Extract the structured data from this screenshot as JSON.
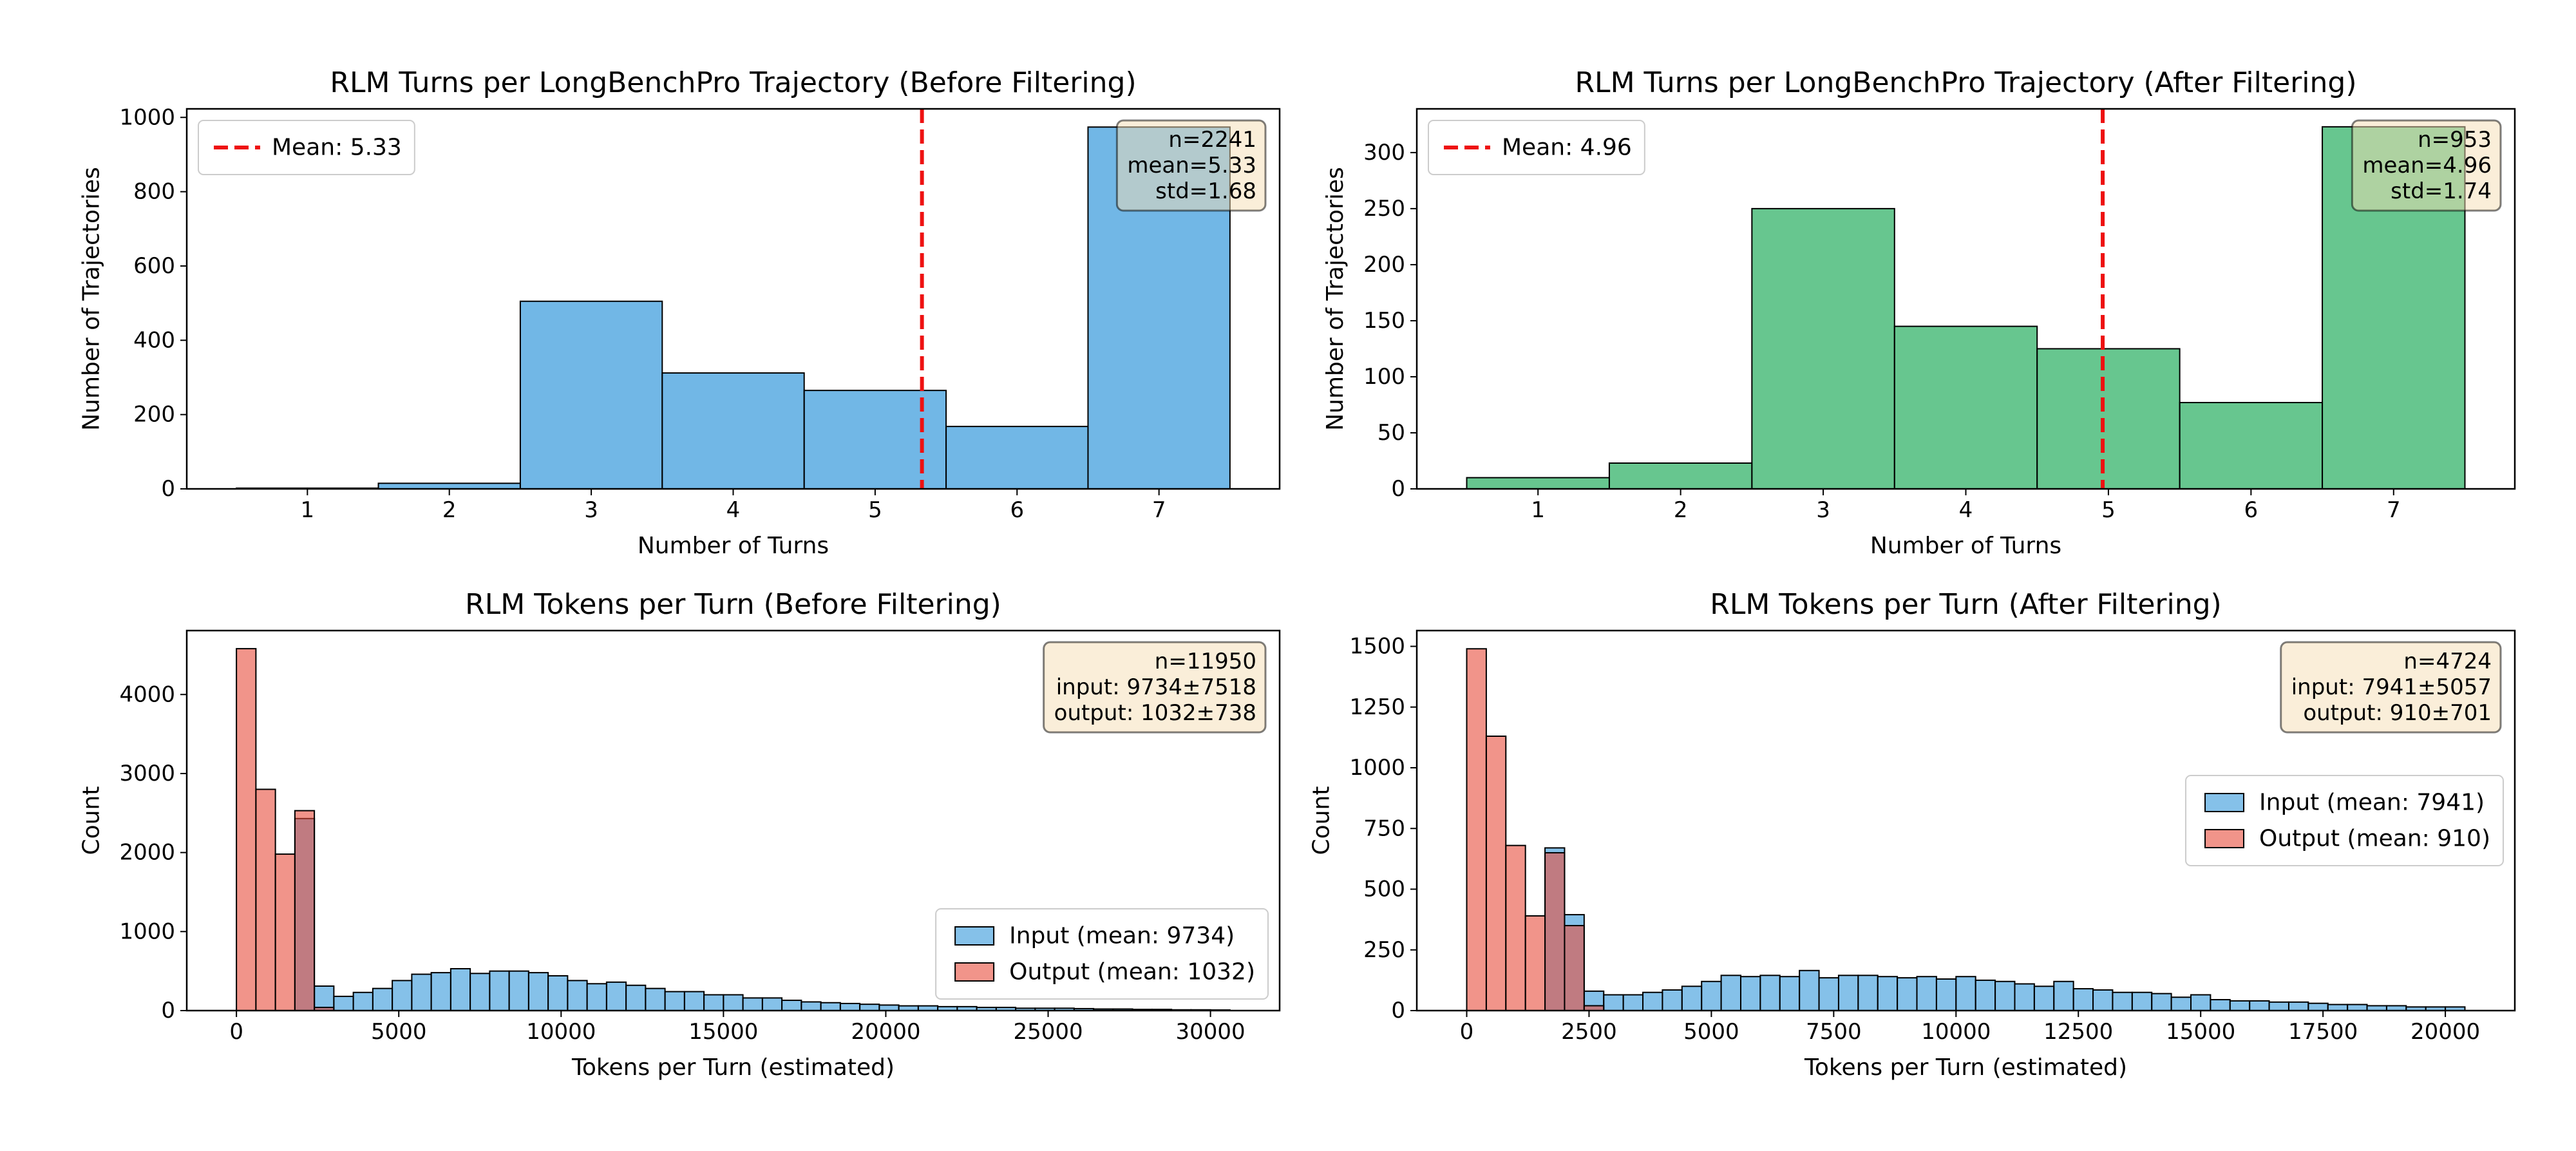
{
  "chart_data": [
    {
      "type": "histogram",
      "title": "RLM Turns per LongBenchPro Trajectory (Before Filtering)",
      "xlabel": "Number of Turns",
      "ylabel": "Number of Trajectories",
      "bins": [
        0.5,
        1.5,
        2.5,
        3.5,
        4.5,
        5.5,
        6.5,
        7.5
      ],
      "values": [
        2,
        15,
        505,
        312,
        265,
        168,
        974
      ],
      "color": "#3498db",
      "alpha": 0.7,
      "xlim": [
        0.15,
        7.85
      ],
      "xticks": [
        1,
        2,
        3,
        4,
        5,
        6,
        7
      ],
      "ylim": [
        0,
        1023
      ],
      "yticks": [
        0,
        200,
        400,
        600,
        800,
        1000
      ],
      "mean_line": {
        "value": 5.33,
        "label": "Mean: 5.33",
        "color": "#ee1111"
      },
      "legend": "upper left",
      "stats_box": [
        "n=2241",
        "mean=5.33",
        "std=1.68"
      ]
    },
    {
      "type": "histogram",
      "title": "RLM Turns per LongBenchPro Trajectory (After Filtering)",
      "xlabel": "Number of Turns",
      "ylabel": "Number of Trajectories",
      "bins": [
        0.5,
        1.5,
        2.5,
        3.5,
        4.5,
        5.5,
        6.5,
        7.5
      ],
      "values": [
        10,
        23,
        250,
        145,
        125,
        77,
        323
      ],
      "color": "#27ae60",
      "alpha": 0.7,
      "xlim": [
        0.15,
        7.85
      ],
      "xticks": [
        1,
        2,
        3,
        4,
        5,
        6,
        7
      ],
      "ylim": [
        0,
        339
      ],
      "yticks": [
        0,
        50,
        100,
        150,
        200,
        250,
        300
      ],
      "mean_line": {
        "value": 4.96,
        "label": "Mean: 4.96",
        "color": "#ee1111"
      },
      "legend": "upper left",
      "stats_box": [
        "n=953",
        "mean=4.96",
        "std=1.74"
      ]
    },
    {
      "type": "histogram",
      "title": "RLM Tokens per Turn (Before Filtering)",
      "xlabel": "Tokens per Turn (estimated)",
      "ylabel": "Count",
      "bins": [
        0,
        600,
        1200,
        1800,
        2400,
        3000,
        3600,
        4200,
        4800,
        5400,
        6000,
        6600,
        7200,
        7800,
        8400,
        9000,
        9600,
        10200,
        10800,
        11400,
        12000,
        12600,
        13200,
        13800,
        14400,
        15000,
        15600,
        16200,
        16800,
        17400,
        18000,
        18600,
        19200,
        19800,
        20400,
        21000,
        21600,
        22200,
        22800,
        23400,
        24000,
        24600,
        25200,
        25800,
        26400,
        27000,
        27600,
        28200,
        28800,
        29400,
        30000,
        30600
      ],
      "series": [
        {
          "name": "Input (mean: 9734)",
          "color": "#3498db",
          "alpha": 0.6,
          "values": [
            0,
            0,
            0,
            2430,
            310,
            180,
            230,
            280,
            380,
            460,
            480,
            530,
            470,
            500,
            500,
            480,
            440,
            380,
            340,
            360,
            320,
            280,
            240,
            240,
            200,
            200,
            160,
            160,
            130,
            110,
            100,
            90,
            80,
            70,
            60,
            60,
            50,
            50,
            40,
            40,
            30,
            30,
            30,
            25,
            20,
            20,
            15,
            15,
            10,
            10,
            8
          ]
        },
        {
          "name": "Output (mean: 1032)",
          "color": "#e74c3c",
          "alpha": 0.6,
          "values": [
            4580,
            2800,
            1980,
            2530,
            40,
            0,
            0,
            0,
            0,
            0,
            0,
            0,
            0,
            0,
            0,
            0,
            0,
            0,
            0,
            0,
            0,
            0,
            0,
            0,
            0,
            0,
            0,
            0,
            0,
            0,
            0,
            0,
            0,
            0,
            0,
            0,
            0,
            0,
            0,
            0,
            0,
            0,
            0,
            0,
            0,
            0,
            0,
            0,
            0,
            0,
            0
          ]
        }
      ],
      "xlim": [
        -1530,
        32130
      ],
      "xticks": [
        0,
        5000,
        10000,
        15000,
        20000,
        25000,
        30000
      ],
      "ylim": [
        0,
        4809
      ],
      "yticks": [
        0,
        1000,
        2000,
        3000,
        4000
      ],
      "legend": "lower right",
      "stats_box": [
        "n=11950",
        "input: 9734±7518",
        "output: 1032±738"
      ]
    },
    {
      "type": "histogram",
      "title": "RLM Tokens per Turn (After Filtering)",
      "xlabel": "Tokens per Turn (estimated)",
      "ylabel": "Count",
      "bins": [
        0,
        400,
        800,
        1200,
        1600,
        2000,
        2400,
        2800,
        3200,
        3600,
        4000,
        4400,
        4800,
        5200,
        5600,
        6000,
        6400,
        6800,
        7200,
        7600,
        8000,
        8400,
        8800,
        9200,
        9600,
        10000,
        10400,
        10800,
        11200,
        11600,
        12000,
        12400,
        12800,
        13200,
        13600,
        14000,
        14400,
        14800,
        15200,
        15600,
        16000,
        16400,
        16800,
        17200,
        17600,
        18000,
        18400,
        18800,
        19200,
        19600,
        20000,
        20400
      ],
      "series": [
        {
          "name": "Input (mean: 7941)",
          "color": "#3498db",
          "alpha": 0.6,
          "values": [
            0,
            0,
            0,
            0,
            670,
            395,
            80,
            65,
            65,
            75,
            85,
            100,
            120,
            145,
            140,
            145,
            140,
            165,
            135,
            145,
            145,
            140,
            135,
            140,
            130,
            140,
            125,
            120,
            110,
            100,
            120,
            90,
            85,
            75,
            75,
            70,
            55,
            65,
            45,
            40,
            40,
            35,
            35,
            30,
            25,
            25,
            20,
            20,
            15,
            15,
            15
          ]
        },
        {
          "name": "Output (mean: 910)",
          "color": "#e74c3c",
          "alpha": 0.6,
          "values": [
            1490,
            1130,
            680,
            390,
            650,
            350,
            20,
            0,
            0,
            0,
            0,
            0,
            0,
            0,
            0,
            0,
            0,
            0,
            0,
            0,
            0,
            0,
            0,
            0,
            0,
            0,
            0,
            0,
            0,
            0,
            0,
            0,
            0,
            0,
            0,
            0,
            0,
            0,
            0,
            0,
            0,
            0,
            0,
            0,
            0,
            0,
            0,
            0,
            0,
            0,
            0
          ]
        }
      ],
      "xlim": [
        -1020,
        21420
      ],
      "xticks": [
        0,
        2500,
        5000,
        7500,
        10000,
        12500,
        15000,
        17500,
        20000
      ],
      "ylim": [
        0,
        1565
      ],
      "yticks": [
        0,
        250,
        500,
        750,
        1000,
        1250,
        1500
      ],
      "legend": "center right",
      "stats_box": [
        "n=4724",
        "input: 7941±5057",
        "output: 910±701"
      ]
    }
  ]
}
